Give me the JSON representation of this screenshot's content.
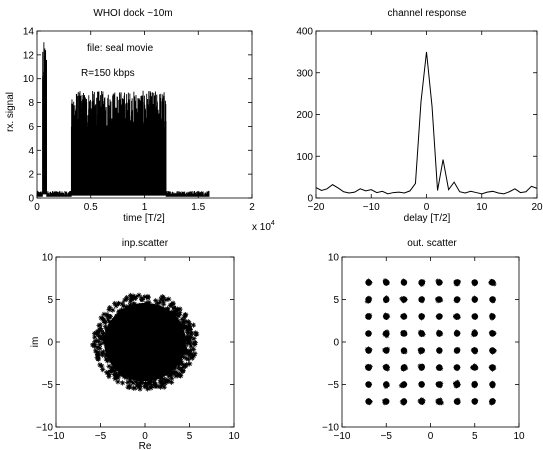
{
  "chart_data": [
    {
      "id": "p1",
      "type": "line",
      "title": "WHOI dock ~10m",
      "xlabel": "time [T/2]",
      "ylabel": "rx. signal",
      "xlim": [
        0,
        20000
      ],
      "ylim": [
        0,
        14
      ],
      "x_exponent_label": "x 10",
      "x_exponent_power": "4",
      "xticks": [
        0,
        5000,
        10000,
        15000,
        20000
      ],
      "xtick_labels": [
        "0",
        "0.5",
        "1",
        "1.5",
        "2"
      ],
      "yticks": [
        0,
        2,
        4,
        6,
        8,
        10,
        12,
        14
      ],
      "ytick_labels": [
        "0",
        "2",
        "4",
        "6",
        "8",
        "10",
        "12",
        "14"
      ],
      "annotations": [
        "file: seal movie",
        "R=150 kbps"
      ],
      "segments": [
        {
          "name": "noise",
          "x": [
            0,
            16000
          ],
          "low": 0.1,
          "high": 0.6
        },
        {
          "name": "preamble",
          "x": [
            500,
            900
          ],
          "low": 0.3,
          "high": 13.2
        },
        {
          "name": "burst",
          "x": [
            3200,
            12000
          ],
          "low": 0.2,
          "high": 9.0
        }
      ],
      "color": "#000000"
    },
    {
      "id": "p2",
      "type": "line",
      "title": "channel response",
      "xlabel": "delay [T/2]",
      "ylabel": "",
      "xlim": [
        -20,
        20
      ],
      "ylim": [
        0,
        400
      ],
      "xticks": [
        -20,
        -10,
        0,
        10,
        20
      ],
      "xtick_labels": [
        "−20",
        "−10",
        "0",
        "10",
        "20"
      ],
      "yticks": [
        0,
        100,
        200,
        300,
        400
      ],
      "ytick_labels": [
        "0",
        "100",
        "200",
        "300",
        "400"
      ],
      "x": [
        -20,
        -19,
        -18,
        -17,
        -16,
        -15,
        -14,
        -13,
        -12,
        -11,
        -10,
        -9,
        -8,
        -7,
        -6,
        -5,
        -4,
        -3,
        -2,
        -1,
        0,
        1,
        2,
        3,
        4,
        5,
        6,
        7,
        8,
        9,
        10,
        11,
        12,
        13,
        14,
        15,
        16,
        17,
        18,
        19,
        20
      ],
      "values": [
        25,
        18,
        22,
        32,
        24,
        15,
        12,
        14,
        22,
        17,
        20,
        13,
        16,
        10,
        13,
        14,
        12,
        17,
        35,
        230,
        350,
        220,
        18,
        92,
        20,
        38,
        15,
        12,
        16,
        13,
        10,
        14,
        16,
        12,
        10,
        15,
        22,
        13,
        15,
        28,
        23
      ],
      "color": "#000000"
    },
    {
      "id": "p3",
      "type": "scatter",
      "title": "inp.scatter",
      "xlabel": "Re",
      "ylabel": "im",
      "xlim": [
        -10,
        10
      ],
      "ylim": [
        -10,
        10
      ],
      "xticks": [
        -10,
        -5,
        0,
        5,
        10
      ],
      "xtick_labels": [
        "−10",
        "−5",
        "0",
        "5",
        "10"
      ],
      "yticks": [
        -10,
        -5,
        0,
        5,
        10
      ],
      "ytick_labels": [
        "−10",
        "−5",
        "0",
        "5",
        "10"
      ],
      "cloud": {
        "center": [
          0,
          0
        ],
        "radius": [
          5.8,
          5.8
        ]
      },
      "marker": "*",
      "color": "#000000"
    },
    {
      "id": "p4",
      "type": "scatter",
      "title": "out. scatter",
      "xlabel": "",
      "ylabel": "",
      "xlim": [
        -10,
        10
      ],
      "ylim": [
        -10,
        10
      ],
      "xticks": [
        -10,
        -5,
        0,
        5,
        10
      ],
      "xtick_labels": [
        "−10",
        "−5",
        "0",
        "5",
        "10"
      ],
      "yticks": [
        -10,
        -5,
        0,
        5,
        10
      ],
      "ytick_labels": [
        "−10",
        "−5",
        "0",
        "5",
        "10"
      ],
      "constellation": [
        -7,
        -5,
        -3,
        -1,
        1,
        3,
        5,
        7
      ],
      "spread": 0.6,
      "marker": "*",
      "color": "#000000"
    }
  ]
}
